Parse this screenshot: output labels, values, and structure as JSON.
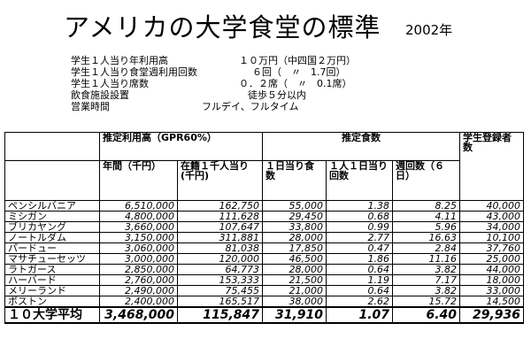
{
  "title": "アメリカの大学食堂の標準",
  "year": "2002年",
  "facts": [
    {
      "label": "学生１人当り年利用高",
      "value": "１０万円（中四国２万円）"
    },
    {
      "label": "学生１人当り食堂週利用回数",
      "value": "６回（　〃　1.7回）"
    },
    {
      "label": "学生１人当り席数",
      "value": "０．２席（　〃　0.1席）"
    },
    {
      "label": "飲食施設設置",
      "value": "徒歩５分以内"
    },
    {
      "label": "営業時間",
      "value": "フルデイ、フルタイム"
    }
  ],
  "table": {
    "group_headers": {
      "usage": "推定利用高（GPR60%）",
      "meals": "推定食数",
      "enroll": "学生登録者数"
    },
    "sub_headers": {
      "annual": "年間（千円）",
      "per_1000": "在籍１千人当り(千円)",
      "per_day": "１日当り食数",
      "per_person_day": "１人１日当り回数",
      "weekly": "週回数（６日）"
    },
    "rows": [
      {
        "name": "ペンシルバニア",
        "annual": "6,510,000",
        "per_1000": "162,750",
        "per_day": "55,000",
        "per_person_day": "1.38",
        "weekly": "8.25",
        "enroll": "40,000"
      },
      {
        "name": "ミシガン",
        "annual": "4,800,000",
        "per_1000": "111,628",
        "per_day": "29,450",
        "per_person_day": "0.68",
        "weekly": "4.11",
        "enroll": "43,000"
      },
      {
        "name": "ブリカヤング",
        "annual": "3,660,000",
        "per_1000": "107,647",
        "per_day": "33,800",
        "per_person_day": "0.99",
        "weekly": "5.96",
        "enroll": "34,000"
      },
      {
        "name": "ノートルダム",
        "annual": "3,150,000",
        "per_1000": "311,881",
        "per_day": "28,000",
        "per_person_day": "2.77",
        "weekly": "16.63",
        "enroll": "10,100"
      },
      {
        "name": "パードュー",
        "annual": "3,060,000",
        "per_1000": "81,038",
        "per_day": "17,850",
        "per_person_day": "0.47",
        "weekly": "2.84",
        "enroll": "37,760"
      },
      {
        "name": "マサチューセッツ",
        "annual": "3,000,000",
        "per_1000": "120,000",
        "per_day": "46,500",
        "per_person_day": "1.86",
        "weekly": "11.16",
        "enroll": "25,000"
      },
      {
        "name": "ラトガース",
        "annual": "2,850,000",
        "per_1000": "64,773",
        "per_day": "28,000",
        "per_person_day": "0.64",
        "weekly": "3.82",
        "enroll": "44,000"
      },
      {
        "name": "ハーバード",
        "annual": "2,760,000",
        "per_1000": "153,333",
        "per_day": "21,500",
        "per_person_day": "1.19",
        "weekly": "7.17",
        "enroll": "18,000"
      },
      {
        "name": "メリーランド",
        "annual": "2,490,000",
        "per_1000": "75,455",
        "per_day": "21,000",
        "per_person_day": "0.64",
        "weekly": "3.82",
        "enroll": "33,000"
      },
      {
        "name": "ボストン",
        "annual": "2,400,000",
        "per_1000": "165,517",
        "per_day": "38,000",
        "per_person_day": "2.62",
        "weekly": "15.72",
        "enroll": "14,500"
      }
    ],
    "average": {
      "name": "１０大学平均",
      "annual": "3,468,000",
      "per_1000": "115,847",
      "per_day": "31,910",
      "per_person_day": "1.07",
      "weekly": "6.40",
      "enroll": "29,936"
    }
  }
}
